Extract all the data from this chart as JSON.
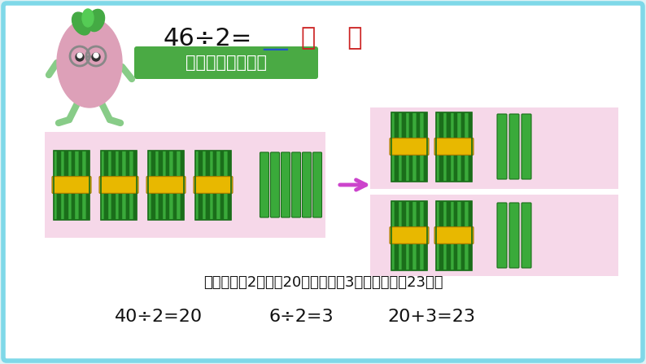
{
  "bg_color": "#dff2f5",
  "border_color": "#7fd8e8",
  "title_main": "46÷2=",
  "title_underline": "__",
  "title_paren": "（    ）",
  "title_color_main": "#111111",
  "title_underline_color": "#2255cc",
  "title_paren_color": "#cc2222",
  "green_box_text": "可以用小棒分一分",
  "green_box_color": "#4aaa44",
  "green_box_text_color": "#ffffff",
  "bottom_text1": "每班先分得2筒，是20个，再分得3个，合起来是23个。",
  "bottom_text1_color": "#111111",
  "formula1": "40÷2=20",
  "formula2": "6÷2=3",
  "formula3": "20+3=23",
  "formula_color": "#111111",
  "pink_color": "#f0b8d8",
  "arrow_color": "#cc44cc",
  "stick_green_dark": "#1a6e1a",
  "stick_green_light": "#3aaa3a",
  "stick_yellow": "#e8b800",
  "white_bg": "#ffffff"
}
